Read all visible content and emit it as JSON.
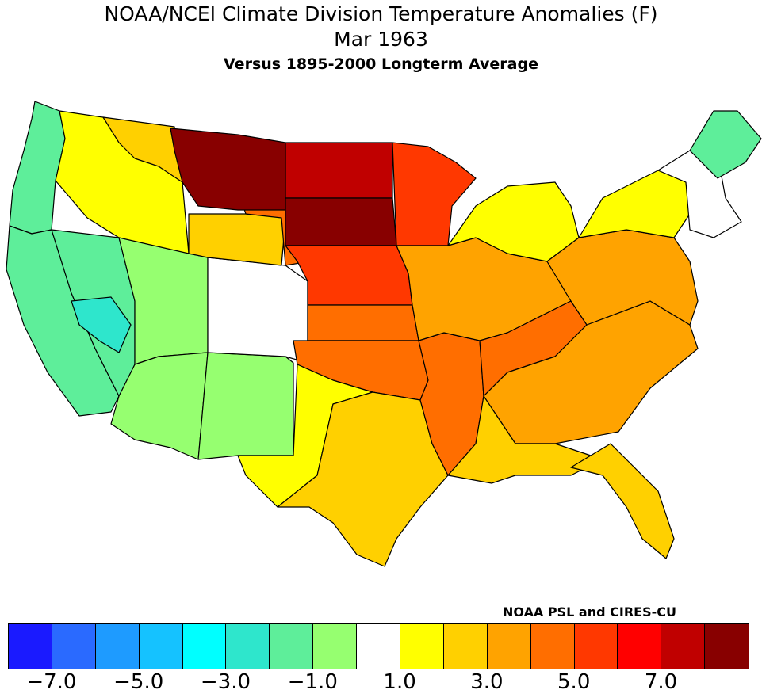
{
  "title": {
    "line1": "NOAA/NCEI Climate Division Temperature Anomalies (F)",
    "line2": "Mar 1963",
    "line3": "Versus 1895-2000 Longterm Average"
  },
  "credit": "NOAA PSL and CIRES-CU",
  "legend": {
    "colors": [
      "#1a1aff",
      "#2a6aff",
      "#1e9bff",
      "#15c2ff",
      "#00ffff",
      "#2ee6cc",
      "#5eee9a",
      "#96ff70",
      "#ffffff",
      "#ffff00",
      "#ffd000",
      "#ffa300",
      "#ff6e00",
      "#ff3800",
      "#ff0000",
      "#c00000",
      "#880000"
    ],
    "ticks": [
      "-7.0",
      "-5.0",
      "-3.0",
      "-1.0",
      "1.0",
      "3.0",
      "5.0",
      "7.0"
    ]
  },
  "regions": [
    {
      "name": "region-pacific-northwest",
      "fill": "#5eee9a"
    },
    {
      "name": "region-inland-northwest",
      "fill": "#ffff00"
    },
    {
      "name": "region-montana-west",
      "fill": "#ffd000"
    },
    {
      "name": "region-california",
      "fill": "#5eee9a"
    },
    {
      "name": "region-nevada",
      "fill": "#5eee9a"
    },
    {
      "name": "region-central-nevada",
      "fill": "#2ee6cc"
    },
    {
      "name": "region-utah",
      "fill": "#96ff70"
    },
    {
      "name": "region-arizona",
      "fill": "#96ff70"
    },
    {
      "name": "region-new-mexico",
      "fill": "#96ff70"
    },
    {
      "name": "region-colorado",
      "fill": "#ffffff"
    },
    {
      "name": "region-wyoming-west",
      "fill": "#ffd000"
    },
    {
      "name": "region-wyoming-east",
      "fill": "#ff6e00"
    },
    {
      "name": "region-montana-east",
      "fill": "#880000"
    },
    {
      "name": "region-north-dakota",
      "fill": "#c00000"
    },
    {
      "name": "region-south-dakota",
      "fill": "#880000"
    },
    {
      "name": "region-nebraska",
      "fill": "#ff3800"
    },
    {
      "name": "region-minnesota",
      "fill": "#ff3800"
    },
    {
      "name": "region-kansas",
      "fill": "#ff6e00"
    },
    {
      "name": "region-oklahoma",
      "fill": "#ff6e00"
    },
    {
      "name": "region-west-texas",
      "fill": "#ffff00"
    },
    {
      "name": "region-texas",
      "fill": "#ffd000"
    },
    {
      "name": "region-lower-mississippi",
      "fill": "#ff6e00"
    },
    {
      "name": "region-midwest",
      "fill": "#ffa300"
    },
    {
      "name": "region-tennessee-valley",
      "fill": "#ff6e00"
    },
    {
      "name": "region-southeast",
      "fill": "#ffa300"
    },
    {
      "name": "region-gulf-coast",
      "fill": "#ffd000"
    },
    {
      "name": "region-florida",
      "fill": "#ffd000"
    },
    {
      "name": "region-great-lakes",
      "fill": "#ffff00"
    },
    {
      "name": "region-mid-atlantic",
      "fill": "#ffa300"
    },
    {
      "name": "region-new-york",
      "fill": "#ffff00"
    },
    {
      "name": "region-new-england",
      "fill": "#ffffff"
    },
    {
      "name": "region-maine",
      "fill": "#5eee9a"
    }
  ]
}
